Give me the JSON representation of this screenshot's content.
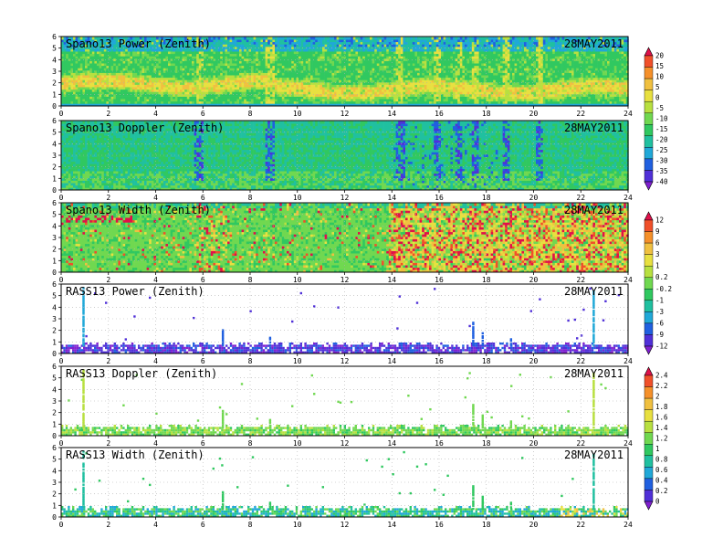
{
  "chart_data": [
    {
      "type": "heatmap",
      "title": "Spano13 Power (Zenith)",
      "date": "28MAY2011",
      "xlim": [
        0,
        24
      ],
      "ylim": [
        0,
        6
      ],
      "xticks": [
        "0",
        "2",
        "4",
        "6",
        "8",
        "10",
        "12",
        "14",
        "16",
        "18",
        "20",
        "22",
        "24"
      ],
      "yticks": [
        "0",
        "1",
        "2",
        "3",
        "4",
        "5",
        "6"
      ],
      "colorbar": "A",
      "grid": true,
      "pattern": "spano-power"
    },
    {
      "type": "heatmap",
      "title": "Spano13 Doppler (Zenith)",
      "date": "28MAY2011",
      "xlim": [
        0,
        24
      ],
      "ylim": [
        0,
        6
      ],
      "xticks": [
        "0",
        "2",
        "4",
        "6",
        "8",
        "10",
        "12",
        "14",
        "16",
        "18",
        "20",
        "22",
        "24"
      ],
      "yticks": [
        "0",
        "1",
        "2",
        "3",
        "4",
        "5",
        "6"
      ],
      "colorbar": "A",
      "grid": true,
      "pattern": "spano-doppler"
    },
    {
      "type": "heatmap",
      "title": "Spano13 Width (Zenith)",
      "date": "28MAY2011",
      "xlim": [
        0,
        24
      ],
      "ylim": [
        0,
        6
      ],
      "xticks": [
        "0",
        "2",
        "4",
        "6",
        "8",
        "10",
        "12",
        "14",
        "16",
        "18",
        "20",
        "22",
        "24"
      ],
      "yticks": [
        "0",
        "1",
        "2",
        "3",
        "4",
        "5",
        "6"
      ],
      "colorbar": "B",
      "grid": true,
      "pattern": "spano-width"
    },
    {
      "type": "heatmap",
      "title": "RASS13 Power (Zenith)",
      "date": "28MAY2011",
      "xlim": [
        0,
        24
      ],
      "ylim": [
        0,
        6
      ],
      "xticks": [
        "0",
        "2",
        "4",
        "6",
        "8",
        "10",
        "12",
        "14",
        "16",
        "18",
        "20",
        "22",
        "24"
      ],
      "yticks": [
        "0",
        "1",
        "2",
        "3",
        "4",
        "5",
        "6"
      ],
      "colorbar": "B",
      "grid": true,
      "pattern": "rass-power"
    },
    {
      "type": "heatmap",
      "title": "RASS13 Doppler (Zenith)",
      "date": "28MAY2011",
      "xlim": [
        0,
        24
      ],
      "ylim": [
        0,
        6
      ],
      "xticks": [
        "0",
        "2",
        "4",
        "6",
        "8",
        "10",
        "12",
        "14",
        "16",
        "18",
        "20",
        "22",
        "24"
      ],
      "yticks": [
        "0",
        "1",
        "2",
        "3",
        "4",
        "5",
        "6"
      ],
      "colorbar": "C",
      "grid": true,
      "pattern": "rass-doppler"
    },
    {
      "type": "heatmap",
      "title": "RASS13 Width (Zenith)",
      "date": "28MAY2011",
      "xlim": [
        0,
        24
      ],
      "ylim": [
        0,
        6
      ],
      "xticks": [
        "0",
        "2",
        "4",
        "6",
        "8",
        "10",
        "12",
        "14",
        "16",
        "18",
        "20",
        "22",
        "24"
      ],
      "yticks": [
        "0",
        "1",
        "2",
        "3",
        "4",
        "5",
        "6"
      ],
      "colorbar": "C",
      "grid": true,
      "pattern": "rass-width"
    }
  ],
  "colorbars": {
    "A": {
      "labels": [
        "20",
        "15",
        "10",
        "5",
        "0",
        "-5",
        "-10",
        "-15",
        "-20",
        "-25",
        "-30",
        "-35",
        "-40"
      ],
      "colors": [
        "#e0104a",
        "#f0502a",
        "#f5902a",
        "#f0c040",
        "#e8e040",
        "#b8e040",
        "#70d850",
        "#30c860",
        "#20c0a0",
        "#20a8d8",
        "#2060e0",
        "#5030d8",
        "#8020d0"
      ]
    },
    "B": {
      "labels": [
        "12",
        "9",
        "6",
        "3",
        "1",
        "0.2",
        "-0.2",
        "-1",
        "-3",
        "-6",
        "-9",
        "-12"
      ],
      "colors": [
        "#e0104a",
        "#f0502a",
        "#f5902a",
        "#f0c040",
        "#e8e040",
        "#b8e040",
        "#70d850",
        "#30c860",
        "#20c0a0",
        "#20a8d8",
        "#2060e0",
        "#5030d8",
        "#8020d0"
      ]
    },
    "C": {
      "labels": [
        "2.4",
        "2.2",
        "2",
        "1.8",
        "1.6",
        "1.4",
        "1.2",
        "1",
        "0.8",
        "0.6",
        "0.4",
        "0.2",
        "0"
      ],
      "colors": [
        "#e0104a",
        "#f0502a",
        "#f5902a",
        "#f0c040",
        "#e8e040",
        "#b8e040",
        "#70d850",
        "#30c860",
        "#20c0a0",
        "#20a8d8",
        "#2060e0",
        "#5030d8",
        "#8020d0"
      ]
    }
  }
}
